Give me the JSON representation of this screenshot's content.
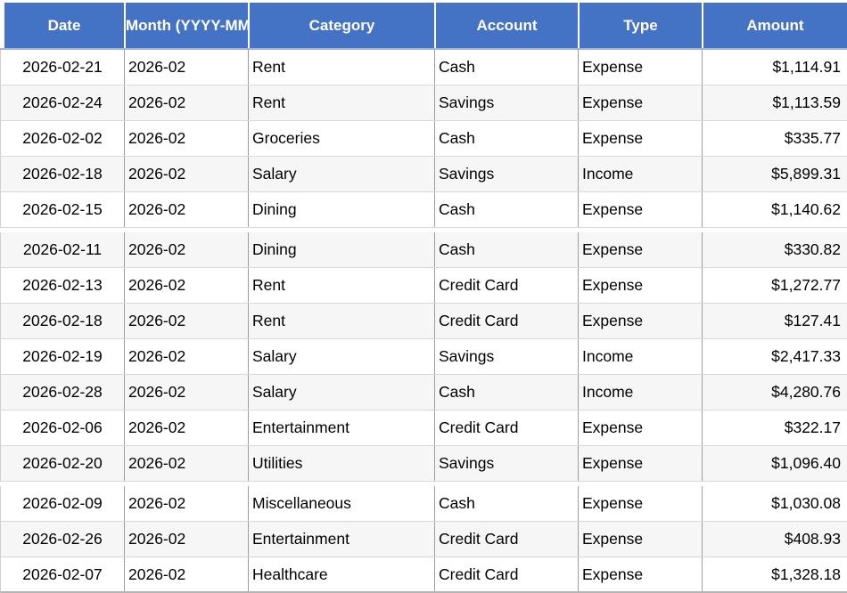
{
  "table": {
    "columns": [
      {
        "label": "Date"
      },
      {
        "label": "Month (YYYY-MM)"
      },
      {
        "label": "Category"
      },
      {
        "label": "Account"
      },
      {
        "label": "Type"
      },
      {
        "label": "Amount"
      }
    ],
    "rows": [
      [
        "2026-02-21",
        "2026-02",
        "Rent",
        "Cash",
        "Expense",
        "$1,114.91"
      ],
      [
        "2026-02-24",
        "2026-02",
        "Rent",
        "Savings",
        "Expense",
        "$1,113.59"
      ],
      [
        "2026-02-02",
        "2026-02",
        "Groceries",
        "Cash",
        "Expense",
        "$335.77"
      ],
      [
        "2026-02-18",
        "2026-02",
        "Salary",
        "Savings",
        "Income",
        "$5,899.31"
      ],
      [
        "2026-02-15",
        "2026-02",
        "Dining",
        "Cash",
        "Expense",
        "$1,140.62"
      ],
      [
        "2026-02-11",
        "2026-02",
        "Dining",
        "Cash",
        "Expense",
        "$330.82"
      ],
      [
        "2026-02-13",
        "2026-02",
        "Rent",
        "Credit Card",
        "Expense",
        "$1,272.77"
      ],
      [
        "2026-02-18",
        "2026-02",
        "Rent",
        "Credit Card",
        "Expense",
        "$127.41"
      ],
      [
        "2026-02-19",
        "2026-02",
        "Salary",
        "Savings",
        "Income",
        "$2,417.33"
      ],
      [
        "2026-02-28",
        "2026-02",
        "Salary",
        "Cash",
        "Income",
        "$4,280.76"
      ],
      [
        "2026-02-06",
        "2026-02",
        "Entertainment",
        "Credit Card",
        "Expense",
        "$322.17"
      ],
      [
        "2026-02-20",
        "2026-02",
        "Utilities",
        "Savings",
        "Expense",
        "$1,096.40"
      ],
      [
        "2026-02-09",
        "2026-02",
        "Miscellaneous",
        "Cash",
        "Expense",
        "$1,030.08"
      ],
      [
        "2026-02-26",
        "2026-02",
        "Entertainment",
        "Credit Card",
        "Expense",
        "$408.93"
      ],
      [
        "2026-02-07",
        "2026-02",
        "Healthcare",
        "Credit Card",
        "Expense",
        "$1,328.18"
      ]
    ],
    "group_breaks_after": [
      4,
      11
    ]
  },
  "colors": {
    "header_bg": "#4472c4",
    "header_text": "#ffffff",
    "row_bg": "#ffffff",
    "row_alt_bg": "#f6f6f6",
    "column_border": "#9d9d9d",
    "row_border": "#d8d8d8"
  }
}
